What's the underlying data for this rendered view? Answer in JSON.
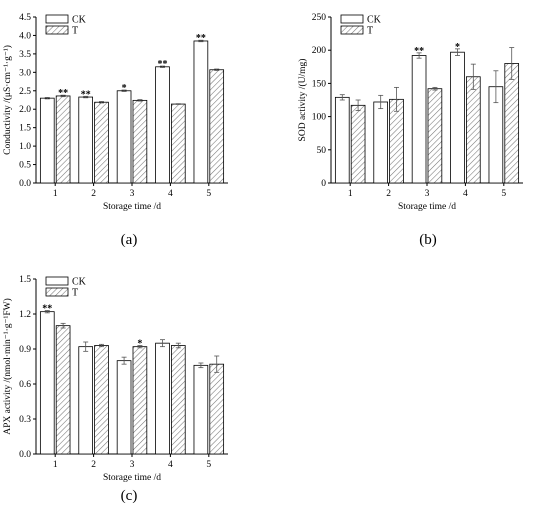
{
  "chart_data": [
    {
      "type": "bar",
      "panel": "(a)",
      "xlabel": "Storage time /d",
      "ylabel": "Conductivity /(μS·cm⁻¹·g⁻¹)",
      "categories": [
        "1",
        "2",
        "3",
        "4",
        "5"
      ],
      "ylim": [
        0,
        4.5
      ],
      "yticks": [
        "0.0",
        "0.5",
        "1.0",
        "1.5",
        "2.0",
        "2.5",
        "3.0",
        "3.5",
        "4.0",
        "4.5"
      ],
      "ytick_values": [
        0,
        0.5,
        1.0,
        1.5,
        2.0,
        2.5,
        3.0,
        3.5,
        4.0,
        4.5
      ],
      "legend_position": "top-left",
      "series": [
        {
          "name": "CK",
          "values": [
            2.3,
            2.33,
            2.5,
            3.15,
            3.85
          ],
          "errors": [
            0.02,
            0.02,
            0.02,
            0.02,
            0.02
          ]
        },
        {
          "name": "T",
          "values": [
            2.36,
            2.19,
            2.24,
            2.14,
            3.07
          ],
          "errors": [
            0.02,
            0.02,
            0.02,
            0.01,
            0.02
          ]
        }
      ],
      "significance": [
        "**",
        "**",
        "*",
        "**",
        "**"
      ]
    },
    {
      "type": "bar",
      "panel": "(b)",
      "xlabel": "Storage time /d",
      "ylabel": "SOD activity /(U/mg)",
      "categories": [
        "1",
        "2",
        "3",
        "4",
        "5"
      ],
      "ylim": [
        0,
        250
      ],
      "yticks": [
        "0",
        "50",
        "100",
        "150",
        "200",
        "250"
      ],
      "ytick_values": [
        0,
        50,
        100,
        150,
        200,
        250
      ],
      "legend_position": "top-left",
      "series": [
        {
          "name": "CK",
          "values": [
            129,
            122,
            192,
            197,
            145
          ],
          "errors": [
            4,
            10,
            4,
            5,
            24
          ]
        },
        {
          "name": "T",
          "values": [
            117,
            126,
            142,
            160,
            180
          ],
          "errors": [
            8,
            18,
            2,
            19,
            24
          ]
        }
      ],
      "significance": [
        "",
        "",
        "**",
        "*",
        ""
      ]
    },
    {
      "type": "bar",
      "panel": "(c)",
      "xlabel": "Storage time /d",
      "ylabel": "APX activity /(nmol·min⁻¹·g⁻¹FW)",
      "categories": [
        "1",
        "2",
        "3",
        "4",
        "5"
      ],
      "ylim": [
        0,
        1.5
      ],
      "yticks": [
        "0.0",
        "0.3",
        "0.6",
        "0.9",
        "1.2",
        "1.5"
      ],
      "ytick_values": [
        0,
        0.3,
        0.6,
        0.9,
        1.2,
        1.5
      ],
      "legend_position": "top-left",
      "series": [
        {
          "name": "CK",
          "values": [
            1.22,
            0.92,
            0.8,
            0.95,
            0.76
          ],
          "errors": [
            0.01,
            0.04,
            0.03,
            0.03,
            0.02
          ]
        },
        {
          "name": "T",
          "values": [
            1.1,
            0.93,
            0.92,
            0.93,
            0.77
          ],
          "errors": [
            0.02,
            0.01,
            0.01,
            0.02,
            0.07
          ]
        }
      ],
      "significance": [
        "**",
        "",
        "*",
        "",
        ""
      ]
    }
  ]
}
